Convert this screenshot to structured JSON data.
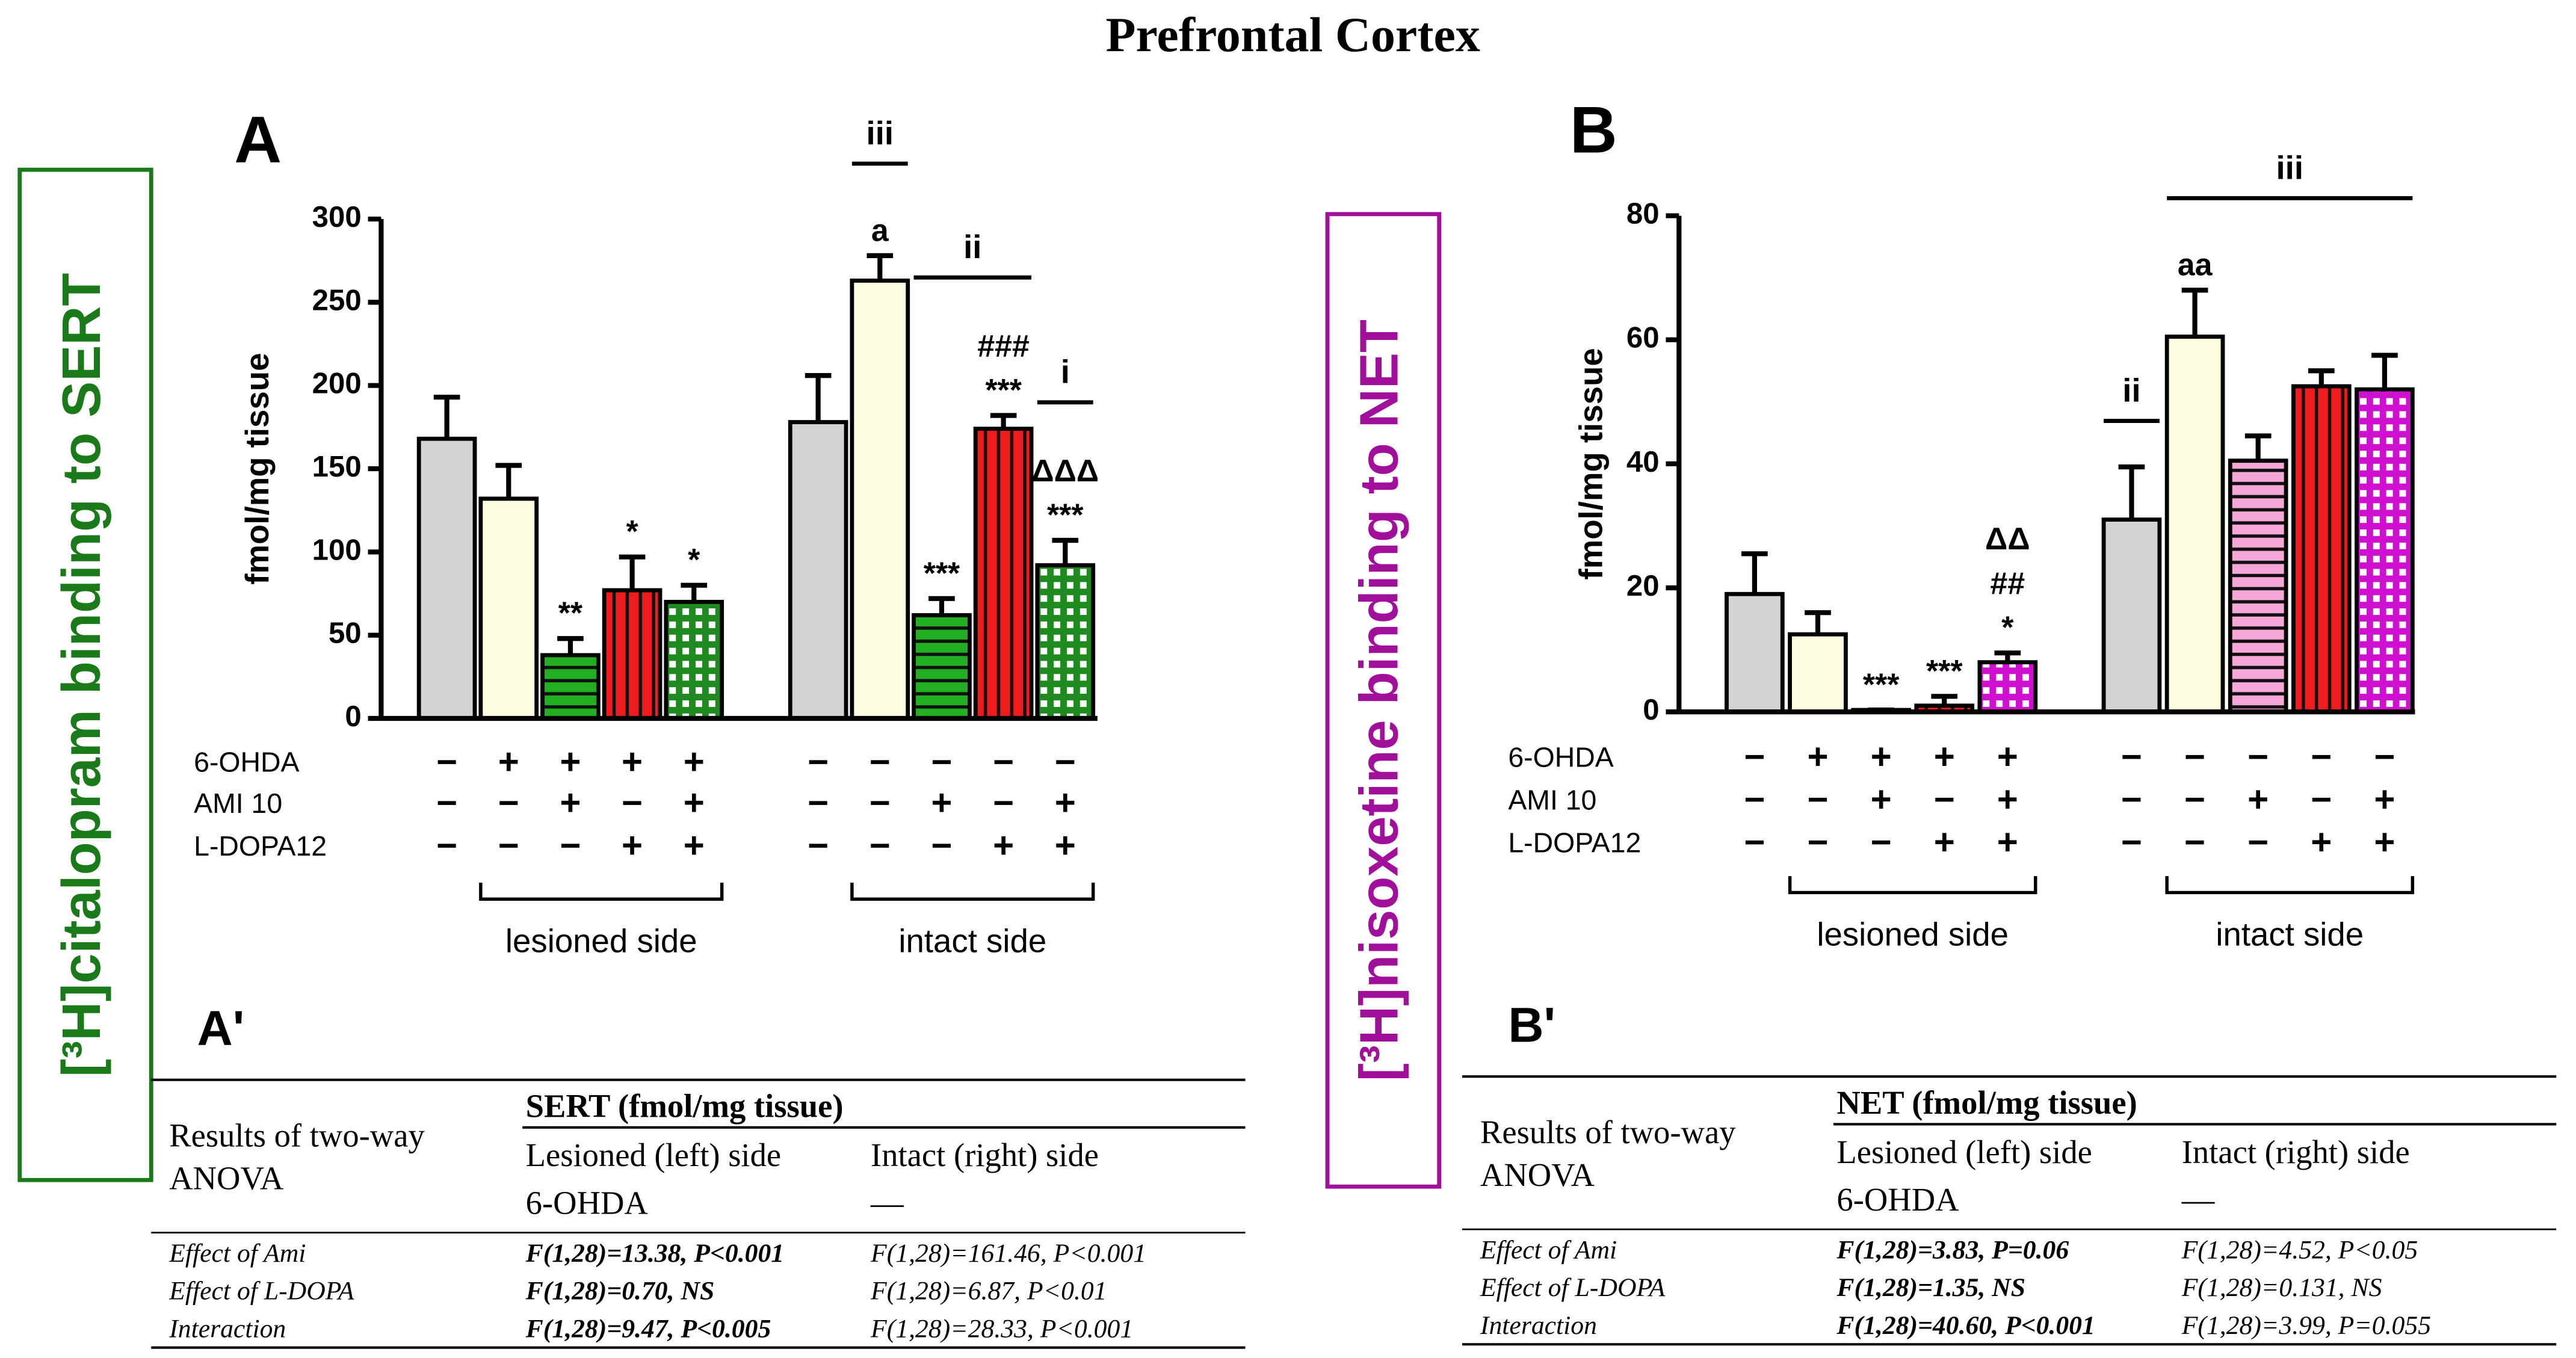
{
  "title": "Prefrontal Cortex",
  "chart_data": [
    {
      "type": "bar",
      "panel": "A",
      "side_label": "[³H]citalopram binding to SERT",
      "label_color": "#1a7a1a",
      "ylabel": "fmol/mg tissue",
      "ylim": [
        0,
        300
      ],
      "yticks": [
        0,
        50,
        100,
        150,
        200,
        250,
        300
      ],
      "values": [
        168,
        132,
        38,
        77,
        70,
        178,
        263,
        62,
        174,
        92
      ],
      "errors": [
        25,
        20,
        10,
        20,
        10,
        28,
        15,
        10,
        8,
        15
      ],
      "colors": [
        "#d3d3d3",
        "#fffde0",
        "#22b022",
        "#ee1c1c",
        "#1f8a1f",
        "#d3d3d3",
        "#fffde0",
        "#22b022",
        "#ee1c1c",
        "#1f8a1f"
      ],
      "patterns": [
        "none",
        "none",
        "hstripe",
        "vstripe",
        "grid",
        "none",
        "none",
        "hstripe",
        "vstripe",
        "grid"
      ],
      "bar_labels": [
        null,
        null,
        [
          "**"
        ],
        [
          "*"
        ],
        [
          "*"
        ],
        null,
        [
          "a"
        ],
        [
          "***"
        ],
        [
          "###",
          "***"
        ],
        [
          "ΔΔΔ",
          "***"
        ]
      ],
      "brackets": [
        null,
        null,
        null,
        null,
        null,
        null,
        "iii",
        "ii",
        "ii",
        "i"
      ],
      "conditions": [
        {
          "label": "6-OHDA",
          "signs": [
            "−",
            "+",
            "+",
            "+",
            "+",
            "−",
            "−",
            "−",
            "−",
            "−"
          ]
        },
        {
          "label": "AMI 10",
          "signs": [
            "−",
            "−",
            "+",
            "−",
            "+",
            "−",
            "−",
            "+",
            "−",
            "+"
          ]
        },
        {
          "label": "L-DOPA12",
          "signs": [
            "−",
            "−",
            "−",
            "+",
            "+",
            "−",
            "−",
            "−",
            "+",
            "+"
          ]
        }
      ],
      "groups": [
        "lesioned side",
        "intact side"
      ],
      "anova": {
        "panel": "A'",
        "head": [
          "Results of two-way",
          "ANOVA"
        ],
        "measure": "SERT (fmol/mg tissue)",
        "columns": [
          "Lesioned (left) side",
          "Intact (right) side"
        ],
        "subheads": [
          "6-OHDA",
          "—"
        ],
        "rows": [
          [
            "Effect of Ami",
            "F(1,28)=13.38, P<0.001",
            "F(1,28)=161.46, P<0.001"
          ],
          [
            "Effect of L-DOPA",
            "F(1,28)=0.70, NS",
            "F(1,28)=6.87, P<0.01"
          ],
          [
            "Interaction",
            "F(1,28)=9.47, P<0.005",
            "F(1,28)=28.33, P<0.001"
          ]
        ]
      }
    },
    {
      "type": "bar",
      "panel": "B",
      "side_label": "[³H]nisoxetine binding to NET",
      "label_color": "#a0109a",
      "ylabel": "fmol/mg tissue",
      "ylim": [
        0,
        80
      ],
      "yticks": [
        0,
        20,
        40,
        60,
        80
      ],
      "values": [
        19,
        12.5,
        0.3,
        1,
        8,
        31,
        60.5,
        40.5,
        52.5,
        52
      ],
      "errors": [
        6.5,
        3.5,
        0,
        1.5,
        1.5,
        8.5,
        7.5,
        4,
        2.5,
        5.5
      ],
      "colors": [
        "#d3d3d3",
        "#fffde0",
        "#f5a8d8",
        "#ee1c1c",
        "#d010d0",
        "#d3d3d3",
        "#fffde0",
        "#f5a8d8",
        "#ee1c1c",
        "#d010d0"
      ],
      "patterns": [
        "none",
        "none",
        "hstripe",
        "vstripe",
        "grid",
        "none",
        "none",
        "hstripe",
        "vstripe",
        "grid"
      ],
      "bar_labels": [
        null,
        null,
        [
          "***"
        ],
        [
          "***"
        ],
        [
          "ΔΔ",
          "##",
          "*"
        ],
        null,
        [
          "aa"
        ],
        null,
        null,
        null
      ],
      "brackets": [
        null,
        null,
        null,
        null,
        null,
        "ii",
        "iii",
        "iii",
        "iii",
        "iii"
      ],
      "conditions": [
        {
          "label": "6-OHDA",
          "signs": [
            "−",
            "+",
            "+",
            "+",
            "+",
            "−",
            "−",
            "−",
            "−",
            "−"
          ]
        },
        {
          "label": "AMI 10",
          "signs": [
            "−",
            "−",
            "+",
            "−",
            "+",
            "−",
            "−",
            "+",
            "−",
            "+"
          ]
        },
        {
          "label": "L-DOPA12",
          "signs": [
            "−",
            "−",
            "−",
            "+",
            "+",
            "−",
            "−",
            "−",
            "+",
            "+"
          ]
        }
      ],
      "groups": [
        "lesioned side",
        "intact side"
      ],
      "anova": {
        "panel": "B'",
        "head": [
          "Results of two-way",
          "ANOVA"
        ],
        "measure": "NET (fmol/mg tissue)",
        "columns": [
          "Lesioned (left) side",
          "Intact (right) side"
        ],
        "subheads": [
          "6-OHDA",
          "—"
        ],
        "rows": [
          [
            "Effect of Ami",
            "F(1,28)=3.83, P=0.06",
            "F(1,28)=4.52, P<0.05"
          ],
          [
            "Effect of L-DOPA",
            "F(1,28)=1.35, NS",
            "F(1,28)=0.131, NS"
          ],
          [
            "Interaction",
            "F(1,28)=40.60, P<0.001",
            "F(1,28)=3.99, P=0.055"
          ]
        ]
      }
    }
  ]
}
